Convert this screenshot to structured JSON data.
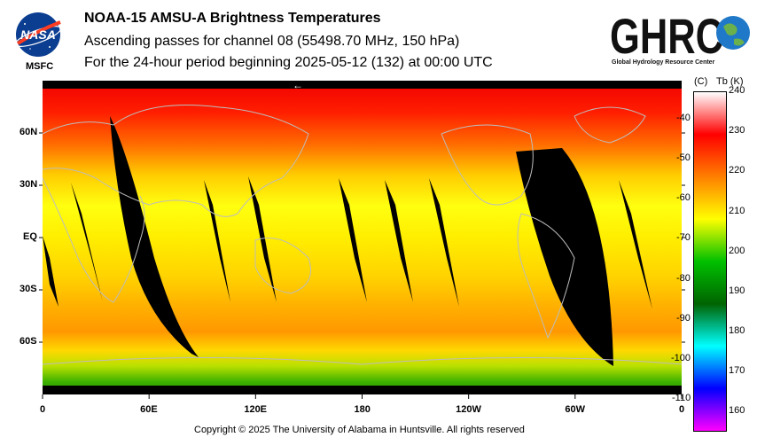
{
  "header": {
    "nasa_logo_text": "NASA",
    "msfc_label": "MSFC",
    "title": "NOAA-15 AMSU-A Brightness Temperatures",
    "subtitle": "Ascending passes for channel 08 (55498.70 MHz, 150 hPa)",
    "period": "For the 24-hour period beginning 2025-05-12 (132) at 00:00 UTC",
    "ghrc_logo_text": "GHRC",
    "ghrc_tagline": "Global Hydrology Resource Center"
  },
  "map": {
    "projection": "cylindrical equidistant",
    "lon_labels": [
      "0",
      "60E",
      "120E",
      "180",
      "120W",
      "60W",
      "0"
    ],
    "lat_labels": [
      "60N",
      "30N",
      "EQ",
      "30S",
      "60S"
    ],
    "direction_arrow": "←",
    "colors": {
      "swath_gap": "#000000",
      "coastline": "#bdbdbd"
    }
  },
  "colorbar": {
    "celsius_header": "(C)",
    "kelvin_header": "Tb  (K)",
    "kelvin_ticks": [
      "240",
      "230",
      "220",
      "210",
      "200",
      "190",
      "180",
      "170",
      "160"
    ],
    "celsius_ticks": [
      "-40",
      "-50",
      "-60",
      "-70",
      "-80",
      "-90",
      "-100",
      "-110"
    ],
    "range_k": [
      155,
      240
    ],
    "stops": [
      "#ffffff",
      "#ff0000",
      "#ff7f00",
      "#ffff00",
      "#00c000",
      "#006400",
      "#00ffff",
      "#0000ff",
      "#ff00ff"
    ]
  },
  "footer": {
    "copyright": "Copyright © 2025 The University of Alabama in Huntsville.  All rights reserved"
  }
}
